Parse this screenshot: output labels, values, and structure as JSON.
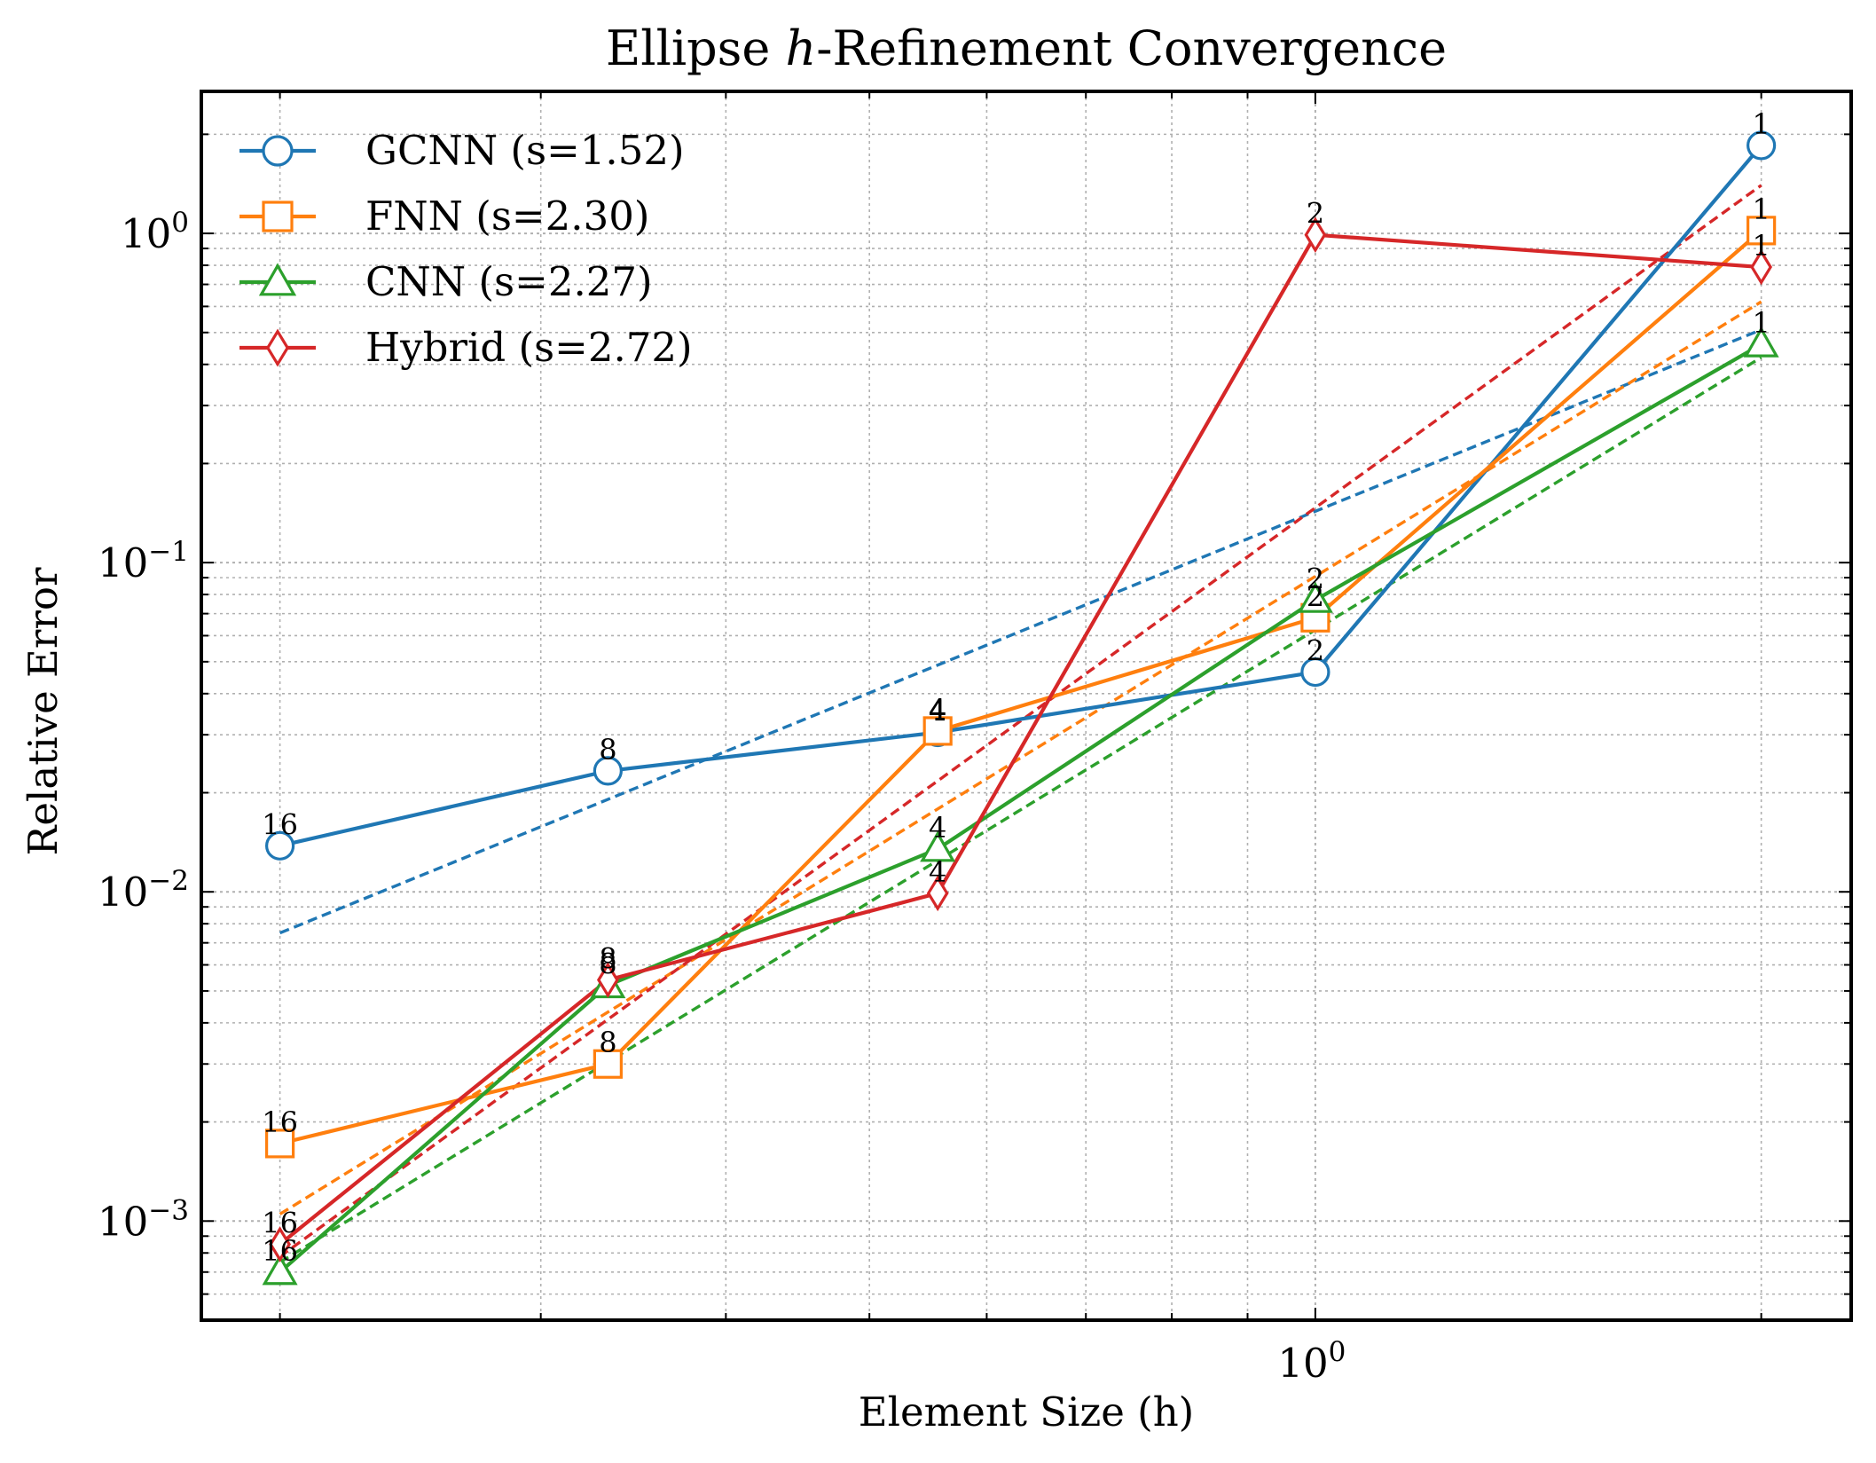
{
  "chart_data": {
    "type": "line",
    "title_prefix": "Ellipse ",
    "title_italic": "h",
    "title_suffix": "-Refinement Convergence",
    "xlabel": "Element Size (h)",
    "ylabel": "Relative Error",
    "xscale": "log",
    "yscale": "log",
    "xlim": [
      0.177,
      2.3
    ],
    "ylim": [
      0.0005,
      2.7
    ],
    "grid": true,
    "legend_position": "upper-left",
    "x_ticks": [
      {
        "value": 1,
        "base": "10",
        "exp": "0"
      }
    ],
    "y_ticks": [
      {
        "value": 0.001,
        "base": "10",
        "exp": "−3"
      },
      {
        "value": 0.01,
        "base": "10",
        "exp": "−2"
      },
      {
        "value": 0.1,
        "base": "10",
        "exp": "−1"
      },
      {
        "value": 1,
        "base": "10",
        "exp": "0"
      }
    ],
    "series": [
      {
        "name": "GCNN (s=1.52)",
        "color": "#1f77b4",
        "marker": "circle",
        "x": [
          0.2,
          0.333,
          0.556,
          1.0,
          2.0
        ],
        "y": [
          0.0138,
          0.0233,
          0.0305,
          0.0465,
          1.85
        ],
        "labels": [
          "16",
          "8",
          "4",
          "2",
          "1"
        ],
        "fit": {
          "slope": 1.52,
          "x": [
            0.2,
            2.0
          ],
          "y": [
            0.0075,
            0.51
          ]
        }
      },
      {
        "name": "FNN (s=2.30)",
        "color": "#ff7f0e",
        "marker": "square",
        "x": [
          0.2,
          0.333,
          0.556,
          1.0,
          2.0
        ],
        "y": [
          0.00172,
          0.003,
          0.0308,
          0.068,
          1.02
        ],
        "labels": [
          "16",
          "8",
          "4",
          "2",
          "1"
        ],
        "fit": {
          "slope": 2.3,
          "x": [
            0.2,
            2.0
          ],
          "y": [
            0.00105,
            0.62
          ]
        }
      },
      {
        "name": "CNN (s=2.27)",
        "color": "#2ca02c",
        "marker": "triangle",
        "x": [
          0.2,
          0.333,
          0.556,
          1.0,
          2.0
        ],
        "y": [
          0.0007,
          0.0052,
          0.0135,
          0.077,
          0.46
        ],
        "labels": [
          "16",
          "8",
          "4",
          "2",
          "1"
        ],
        "fit": {
          "slope": 2.27,
          "x": [
            0.2,
            2.0
          ],
          "y": [
            0.00075,
            0.42
          ]
        }
      },
      {
        "name": "Hybrid (s=2.72)",
        "color": "#d62728",
        "marker": "diamond",
        "x": [
          0.2,
          0.333,
          0.556,
          1.0,
          2.0
        ],
        "y": [
          0.00085,
          0.0054,
          0.0099,
          0.99,
          0.79
        ],
        "labels": [
          "16",
          "8",
          "4",
          "2",
          "1"
        ],
        "fit": {
          "slope": 2.72,
          "x": [
            0.2,
            2.0
          ],
          "y": [
            0.00078,
            1.4
          ]
        }
      }
    ]
  }
}
